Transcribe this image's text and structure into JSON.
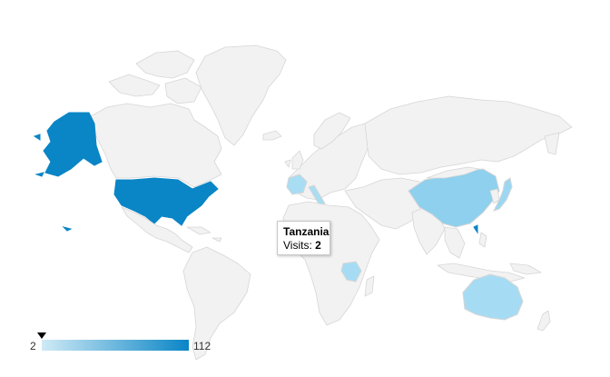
{
  "map": {
    "colors": {
      "land": "#f2f2f2",
      "border": "#d6d6d6",
      "scale_low": "#cfeaf6",
      "scale_high": "#0a85c6"
    },
    "regions": [
      {
        "name": "United States",
        "visits": 112,
        "color": "#0a85c6"
      },
      {
        "name": "China",
        "visits": 10,
        "color": "#8ed0ee"
      },
      {
        "name": "Australia",
        "visits": 5,
        "color": "#a6dcf3"
      },
      {
        "name": "France",
        "visits": 4,
        "color": "#a9ddf3"
      },
      {
        "name": "Italy",
        "visits": 4,
        "color": "#a9ddf3"
      },
      {
        "name": "Japan",
        "visits": 6,
        "color": "#9cd7f1"
      },
      {
        "name": "Tanzania",
        "visits": 2,
        "color": "#a6dcf3"
      }
    ]
  },
  "tooltip": {
    "title": "Tanzania",
    "label": "Visits: ",
    "value": "2"
  },
  "legend": {
    "min": "2",
    "max": "112",
    "marker_value": 2
  }
}
